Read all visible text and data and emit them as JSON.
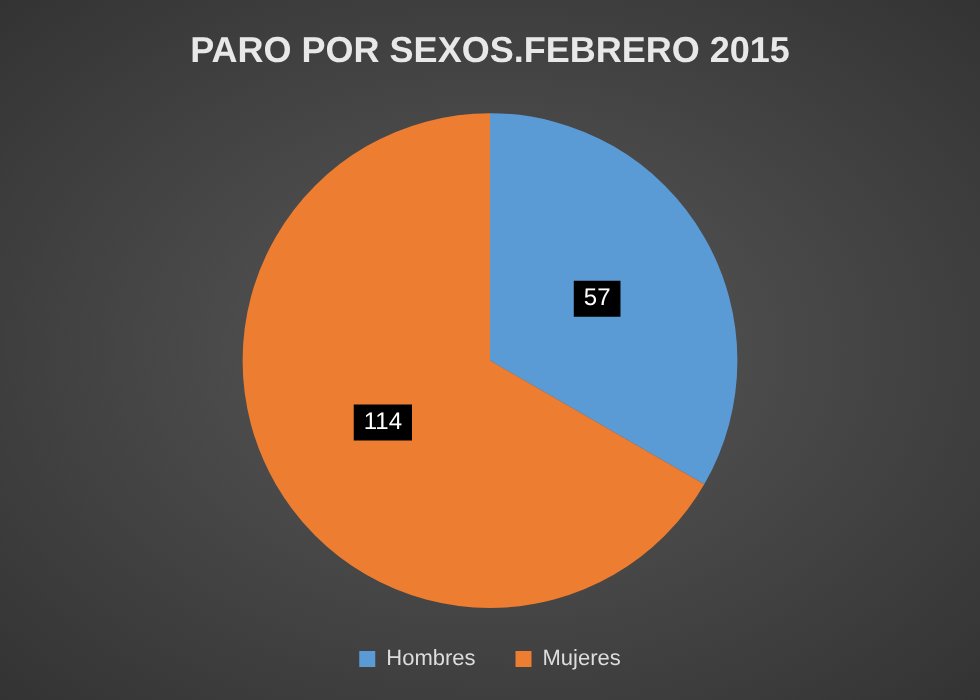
{
  "chart_data": {
    "type": "pie",
    "title": "PARO POR SEXOS.FEBRERO 2015",
    "categories": [
      "Hombres",
      "Mujeres"
    ],
    "values": [
      57,
      114
    ],
    "colors": [
      "#5b9bd5",
      "#ed7d31"
    ],
    "data_labels": true,
    "legend": "bottom"
  }
}
